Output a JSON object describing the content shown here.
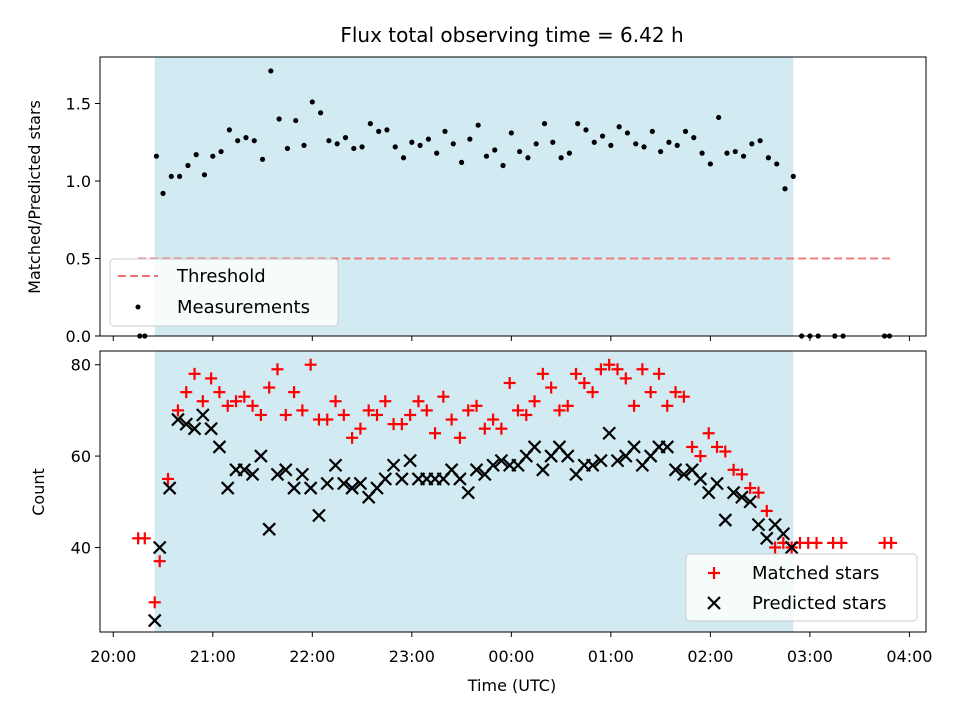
{
  "chart_data": [
    {
      "type": "scatter",
      "title": "Flux total observing time = 6.42 h",
      "ylabel": "Matched/Predicted stars",
      "ylim": [
        0,
        1.8
      ],
      "yticks": [
        0.0,
        0.5,
        1.0,
        1.5
      ],
      "ytick_labels": [
        "0.0",
        "0.5",
        "1.0",
        "1.5"
      ],
      "legend_placement": "lower-left",
      "highlight_span": {
        "start": "20:25",
        "end": "02:50",
        "color": "#add8e6"
      },
      "threshold": {
        "name": "Threshold",
        "y": 0.5,
        "x_start": "20:15",
        "x_end": "03:50",
        "color": "#f07070"
      },
      "series": [
        {
          "name": "Measurements",
          "marker": "dot",
          "color": "#000000",
          "x": [
            "20:16",
            "20:19",
            "20:26",
            "20:30",
            "20:35",
            "20:40",
            "20:45",
            "20:50",
            "20:55",
            "21:00",
            "21:05",
            "21:10",
            "21:15",
            "21:20",
            "21:25",
            "21:30",
            "21:35",
            "21:40",
            "21:45",
            "21:50",
            "21:55",
            "22:00",
            "22:05",
            "22:10",
            "22:15",
            "22:20",
            "22:25",
            "22:30",
            "22:35",
            "22:40",
            "22:45",
            "22:50",
            "22:55",
            "23:00",
            "23:05",
            "23:10",
            "23:15",
            "23:20",
            "23:25",
            "23:30",
            "23:35",
            "23:40",
            "23:45",
            "23:50",
            "23:55",
            "00:00",
            "00:05",
            "00:10",
            "00:15",
            "00:20",
            "00:25",
            "00:30",
            "00:35",
            "00:40",
            "00:45",
            "00:50",
            "00:55",
            "01:00",
            "01:05",
            "01:10",
            "01:15",
            "01:20",
            "01:25",
            "01:30",
            "01:35",
            "01:40",
            "01:45",
            "01:50",
            "01:55",
            "02:00",
            "02:05",
            "02:10",
            "02:15",
            "02:20",
            "02:25",
            "02:30",
            "02:35",
            "02:40",
            "02:45",
            "02:50",
            "02:55",
            "03:00",
            "03:05",
            "03:15",
            "03:20",
            "03:45",
            "03:48"
          ],
          "y": [
            0.0,
            0.0,
            1.16,
            0.92,
            1.03,
            1.03,
            1.1,
            1.17,
            1.04,
            1.16,
            1.19,
            1.33,
            1.26,
            1.28,
            1.26,
            1.14,
            1.71,
            1.4,
            1.21,
            1.39,
            1.23,
            1.51,
            1.44,
            1.26,
            1.24,
            1.28,
            1.21,
            1.22,
            1.37,
            1.32,
            1.33,
            1.22,
            1.15,
            1.25,
            1.23,
            1.27,
            1.18,
            1.32,
            1.24,
            1.12,
            1.27,
            1.36,
            1.16,
            1.2,
            1.1,
            1.31,
            1.19,
            1.15,
            1.24,
            1.37,
            1.25,
            1.15,
            1.18,
            1.37,
            1.33,
            1.25,
            1.29,
            1.23,
            1.35,
            1.31,
            1.24,
            1.22,
            1.32,
            1.19,
            1.25,
            1.23,
            1.32,
            1.28,
            1.18,
            1.11,
            1.41,
            1.18,
            1.19,
            1.16,
            1.24,
            1.26,
            1.15,
            1.11,
            0.95,
            1.03,
            0.0,
            0.0,
            0.0,
            0.0,
            0.0,
            0.0,
            0.0
          ]
        }
      ]
    },
    {
      "type": "scatter",
      "xlabel": "Time (UTC)",
      "ylabel": "Count",
      "ylim": [
        21.5,
        83
      ],
      "yticks": [
        40,
        60,
        80
      ],
      "ytick_labels": [
        "40",
        "60",
        "80"
      ],
      "x_tick_labels": [
        "20:00",
        "21:00",
        "22:00",
        "23:00",
        "00:00",
        "01:00",
        "02:00",
        "03:00",
        "04:00"
      ],
      "legend_placement": "lower-right",
      "highlight_span": {
        "start": "20:25",
        "end": "02:50",
        "color": "#add8e6"
      },
      "series": [
        {
          "name": "Matched stars",
          "marker": "plus",
          "color": "#ff0000",
          "x": [
            "20:15",
            "20:19",
            "20:25",
            "20:28",
            "20:33",
            "20:39",
            "20:44",
            "20:49",
            "20:54",
            "20:59",
            "21:04",
            "21:09",
            "21:14",
            "21:19",
            "21:24",
            "21:29",
            "21:34",
            "21:39",
            "21:44",
            "21:49",
            "21:54",
            "21:59",
            "22:04",
            "22:09",
            "22:14",
            "22:19",
            "22:24",
            "22:29",
            "22:34",
            "22:39",
            "22:44",
            "22:49",
            "22:54",
            "22:59",
            "23:04",
            "23:09",
            "23:14",
            "23:19",
            "23:24",
            "23:29",
            "23:34",
            "23:39",
            "23:44",
            "23:49",
            "23:54",
            "23:59",
            "00:04",
            "00:09",
            "00:14",
            "00:19",
            "00:24",
            "00:29",
            "00:34",
            "00:39",
            "00:44",
            "00:49",
            "00:54",
            "00:59",
            "01:04",
            "01:09",
            "01:14",
            "01:19",
            "01:24",
            "01:29",
            "01:34",
            "01:39",
            "01:44",
            "01:49",
            "01:54",
            "01:59",
            "02:04",
            "02:09",
            "02:14",
            "02:19",
            "02:24",
            "02:29",
            "02:34",
            "02:39",
            "02:44",
            "02:49",
            "02:54",
            "02:59",
            "03:04",
            "03:14",
            "03:19",
            "03:45",
            "03:49"
          ],
          "y": [
            42,
            42,
            28,
            37,
            55,
            70,
            74,
            78,
            72,
            77,
            74,
            71,
            72,
            73,
            71,
            69,
            75,
            79,
            69,
            74,
            70,
            80,
            68,
            68,
            72,
            69,
            64,
            66,
            70,
            69,
            72,
            67,
            67,
            69,
            72,
            70,
            65,
            73,
            68,
            64,
            70,
            71,
            66,
            68,
            66,
            76,
            70,
            69,
            72,
            78,
            75,
            70,
            71,
            78,
            76,
            74,
            79,
            80,
            79,
            77,
            71,
            79,
            74,
            78,
            71,
            74,
            73,
            62,
            60,
            65,
            62,
            61,
            57,
            56,
            53,
            52,
            48,
            40,
            41,
            40,
            41,
            41,
            41,
            41,
            41,
            41,
            41
          ]
        },
        {
          "name": "Predicted stars",
          "marker": "x",
          "color": "#000000",
          "x": [
            "20:25",
            "20:28",
            "20:34",
            "20:39",
            "20:44",
            "20:49",
            "20:54",
            "20:59",
            "21:04",
            "21:09",
            "21:14",
            "21:19",
            "21:24",
            "21:29",
            "21:34",
            "21:39",
            "21:44",
            "21:49",
            "21:54",
            "21:59",
            "22:04",
            "22:09",
            "22:14",
            "22:19",
            "22:24",
            "22:29",
            "22:34",
            "22:39",
            "22:44",
            "22:49",
            "22:54",
            "22:59",
            "23:04",
            "23:09",
            "23:14",
            "23:19",
            "23:24",
            "23:29",
            "23:34",
            "23:39",
            "23:44",
            "23:49",
            "23:54",
            "23:59",
            "00:04",
            "00:09",
            "00:14",
            "00:19",
            "00:24",
            "00:29",
            "00:34",
            "00:39",
            "00:44",
            "00:49",
            "00:54",
            "00:59",
            "01:04",
            "01:09",
            "01:14",
            "01:19",
            "01:24",
            "01:29",
            "01:34",
            "01:39",
            "01:44",
            "01:49",
            "01:54",
            "01:59",
            "02:04",
            "02:09",
            "02:14",
            "02:19",
            "02:24",
            "02:29",
            "02:34",
            "02:39",
            "02:44",
            "02:49"
          ],
          "y": [
            24,
            40,
            53,
            68,
            67,
            66,
            69,
            66,
            62,
            53,
            57,
            57,
            56,
            60,
            44,
            56,
            57,
            53,
            56,
            53,
            47,
            54,
            58,
            54,
            53,
            54,
            51,
            53,
            55,
            58,
            55,
            59,
            55,
            55,
            55,
            55,
            57,
            55,
            52,
            57,
            56,
            58,
            59,
            58,
            58,
            60,
            62,
            57,
            60,
            62,
            60,
            56,
            58,
            58,
            59,
            65,
            59,
            60,
            62,
            58,
            60,
            62,
            62,
            57,
            56,
            57,
            55,
            52,
            54,
            46,
            52,
            51,
            50,
            45,
            42,
            45,
            43,
            40
          ]
        }
      ]
    }
  ]
}
